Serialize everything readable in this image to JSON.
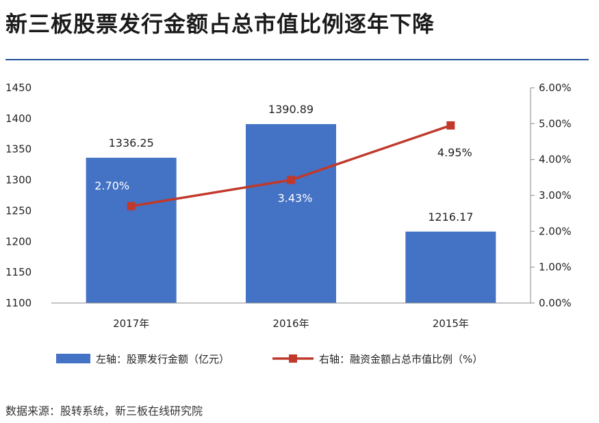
{
  "page": {
    "title": "新三板股票发行金额占总市值比例逐年下降",
    "source": "数据来源：股转系统，新三板在线研究院"
  },
  "chart_data": {
    "type": "bar+line",
    "categories": [
      "2017年",
      "2016年",
      "2015年"
    ],
    "series": [
      {
        "name": "左轴：股票发行金额（亿元）",
        "type": "bar",
        "axis": "left",
        "values": [
          1336.25,
          1390.89,
          1216.17
        ],
        "labels": [
          "1336.25",
          "1390.89",
          "1216.17"
        ],
        "color": "#4472c4"
      },
      {
        "name": "右轴：融资金额占总市值比例（%）",
        "type": "line",
        "axis": "right",
        "values": [
          2.7,
          3.43,
          4.95
        ],
        "labels": [
          "2.70%",
          "3.43%",
          "4.95%"
        ],
        "color": "#c0392b"
      }
    ],
    "y_left": {
      "min": 1100,
      "max": 1450,
      "ticks": [
        "1100",
        "1150",
        "1200",
        "1250",
        "1300",
        "1350",
        "1400",
        "1450"
      ]
    },
    "y_right": {
      "min": 0,
      "max": 6,
      "ticks": [
        "0.00%",
        "1.00%",
        "2.00%",
        "3.00%",
        "4.00%",
        "5.00%",
        "6.00%"
      ]
    },
    "legend_position": "bottom",
    "grid": false
  },
  "colors": {
    "accent": "#1f4e9a",
    "bar": "#4472c4",
    "line": "#c0392b"
  }
}
